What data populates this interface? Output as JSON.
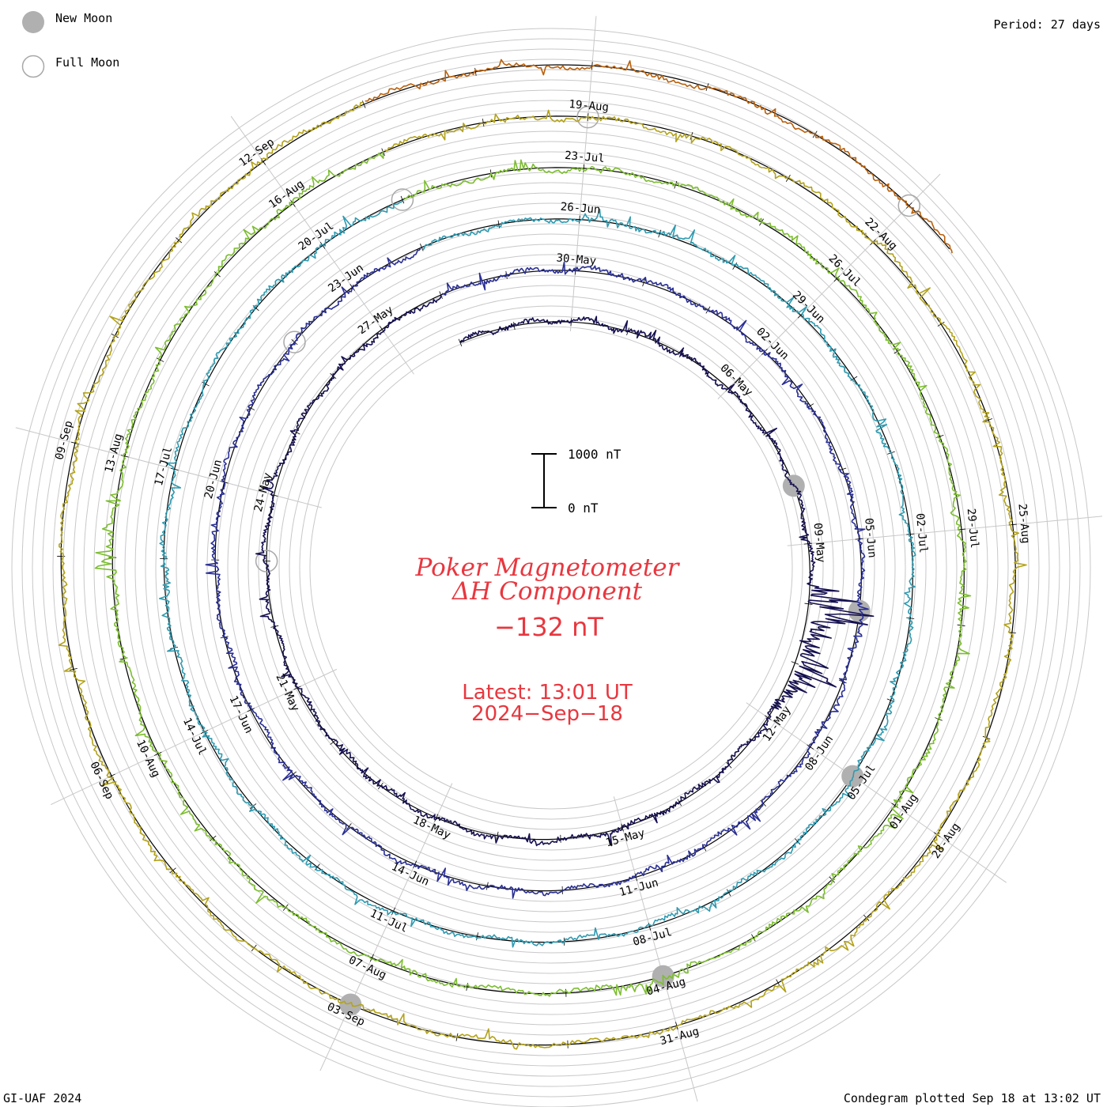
{
  "legend": {
    "new_moon_label": "New Moon",
    "full_moon_label": "Full Moon"
  },
  "period_label": "Period: 27 days",
  "footer_left": "GI-UAF 2024",
  "footer_right": "Condegram plotted Sep 18 at 13:02 UT",
  "title_line1": "Poker Magnetometer",
  "title_line2": "ΔH Component",
  "current_value": "−132 nT",
  "latest_time": "Latest: 13:01 UT",
  "latest_date": "2024−Sep−18",
  "scale_top_label": "1000 nT",
  "scale_bottom_label": "0 nT",
  "colors": {
    "moon_new": "#b0b0b0",
    "moon_full_stroke": "#a8a8a8",
    "grid": "#c8c8c8",
    "title_red": "#e8373f",
    "cycles": [
      "#15104f",
      "#2a2f94",
      "#2f9ab0",
      "#7cbd2f",
      "#b3a21b",
      "#b8600c",
      "#c41212"
    ]
  },
  "chart_data": {
    "type": "line",
    "projection": "spiral condegram",
    "period_days": 27,
    "start_date": "2024-05-01",
    "end_date": "2024-09-18",
    "units": "nT",
    "scale_bar": [
      0,
      1000
    ],
    "latest_value_nT": -132,
    "date_labels": [
      "06-May",
      "09-May",
      "12-May",
      "15-May",
      "18-May",
      "21-May",
      "24-May",
      "27-May",
      "30-May",
      "02-Jun",
      "05-Jun",
      "08-Jun",
      "11-Jun",
      "14-Jun",
      "17-Jun",
      "20-Jun",
      "23-Jun",
      "26-Jun",
      "29-Jun",
      "02-Jul",
      "05-Jul",
      "08-Jul",
      "11-Jul",
      "14-Jul",
      "17-Jul",
      "20-Jul",
      "23-Jul",
      "26-Jul",
      "29-Jul",
      "01-Aug",
      "04-Aug",
      "07-Aug",
      "10-Aug",
      "13-Aug",
      "16-Aug",
      "19-Aug",
      "22-Aug",
      "25-Aug",
      "28-Aug",
      "31-Aug",
      "03-Sep",
      "06-Sep",
      "09-Sep",
      "12-Sep"
    ],
    "new_moons": [
      "2024-05-08",
      "2024-06-06",
      "2024-07-05",
      "2024-08-04",
      "2024-09-03"
    ],
    "full_moons": [
      "2024-05-23",
      "2024-06-22",
      "2024-07-21",
      "2024-08-19",
      "2024-09-18"
    ],
    "storm_events": [
      {
        "date": "2024-05-10",
        "peak_nT": 1500
      },
      {
        "date": "2024-05-11",
        "peak_nT": 900
      },
      {
        "date": "2024-08-04",
        "peak_nT": 300
      },
      {
        "date": "2024-08-12",
        "peak_nT": 350
      }
    ]
  }
}
